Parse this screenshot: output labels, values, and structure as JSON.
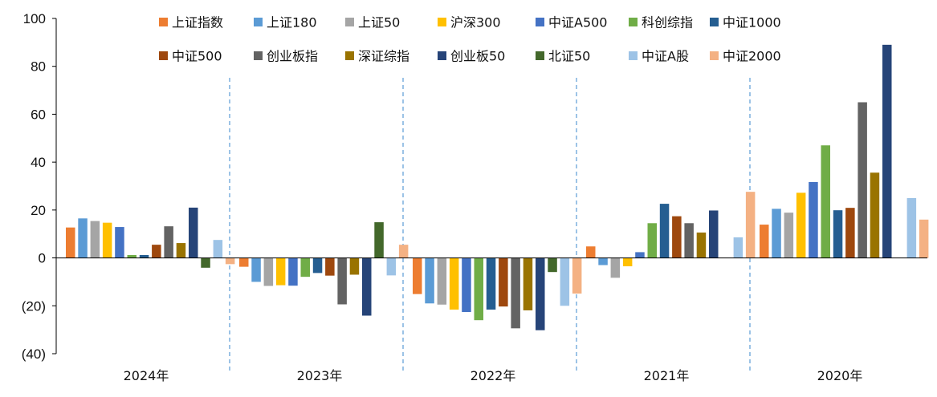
{
  "chart_data": {
    "type": "bar",
    "title": "",
    "xlabel": "",
    "ylabel": "",
    "ylim": [
      -40,
      100
    ],
    "yticks": [
      -40,
      -20,
      0,
      20,
      40,
      60,
      80,
      100
    ],
    "ytick_labels": [
      "(40)",
      "(20)",
      "0",
      "20",
      "40",
      "60",
      "80",
      "100"
    ],
    "categories": [
      "2024年",
      "2023年",
      "2022年",
      "2021年",
      "2020年"
    ],
    "legend_position": "top",
    "series": [
      {
        "name": "上证指数",
        "color": "#ED7D31",
        "values": [
          12.7,
          -3.7,
          -15.1,
          4.8,
          13.9
        ]
      },
      {
        "name": "上证180",
        "color": "#5B9BD5",
        "values": [
          16.5,
          -10.0,
          -19.0,
          -3.0,
          20.5
        ]
      },
      {
        "name": "上证50",
        "color": "#A5A5A5",
        "values": [
          15.4,
          -11.7,
          -19.5,
          -8.3,
          18.9
        ]
      },
      {
        "name": "沪深300",
        "color": "#FFC000",
        "values": [
          14.7,
          -11.4,
          -21.6,
          -3.5,
          27.2
        ]
      },
      {
        "name": "中证A500",
        "color": "#4472C4",
        "values": [
          12.9,
          -11.6,
          -22.6,
          2.4,
          31.7
        ]
      },
      {
        "name": "科创综指",
        "color": "#70AD47",
        "values": [
          1.2,
          -7.9,
          -26.0,
          14.5,
          47.0
        ]
      },
      {
        "name": "中证1000",
        "color": "#255E91",
        "values": [
          1.2,
          -6.3,
          -21.6,
          22.6,
          19.9
        ]
      },
      {
        "name": "中证500",
        "color": "#9E480E",
        "values": [
          5.5,
          -7.4,
          -20.3,
          17.4,
          20.9
        ]
      },
      {
        "name": "创业板指",
        "color": "#636363",
        "values": [
          13.2,
          -19.4,
          -29.4,
          14.5,
          65.0
        ]
      },
      {
        "name": "深证综指",
        "color": "#997300",
        "values": [
          6.2,
          -7.0,
          -21.9,
          10.6,
          35.6
        ]
      },
      {
        "name": "创业板50",
        "color": "#264478",
        "values": [
          21.0,
          -24.1,
          -30.2,
          19.8,
          89.0
        ]
      },
      {
        "name": "北证50",
        "color": "#43682B",
        "values": [
          -4.1,
          14.9,
          -5.9,
          0,
          0
        ]
      },
      {
        "name": "中证A股",
        "color": "#9DC3E6",
        "values": [
          7.5,
          -7.3,
          -20.0,
          8.6,
          25.0
        ]
      },
      {
        "name": "中证2000",
        "color": "#F4B183",
        "values": [
          -2.6,
          5.5,
          -14.9,
          27.6,
          16.0
        ]
      }
    ]
  }
}
